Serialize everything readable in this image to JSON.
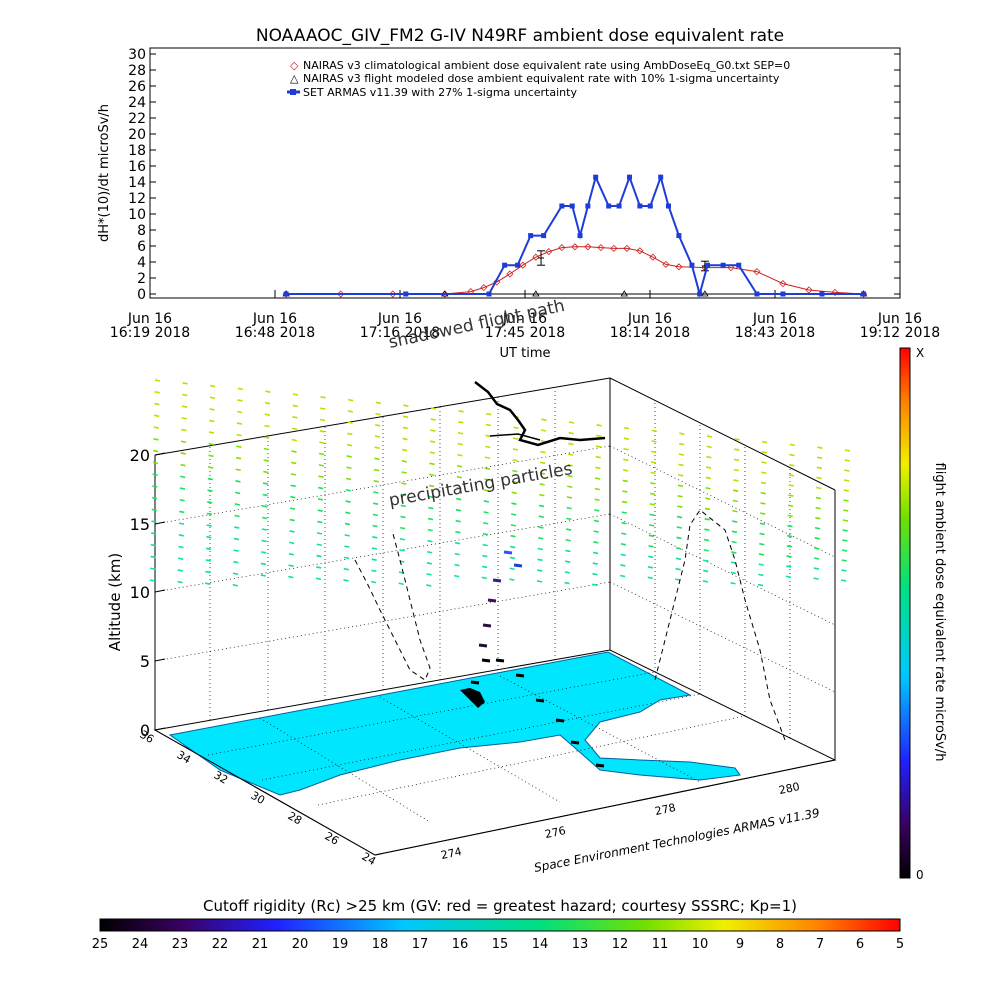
{
  "chart_data": [
    {
      "type": "line",
      "title": "NOAAAOC_GIV_FM2 G-IV    N49RF  ambient dose equivalent rate",
      "xlabel": "UT time",
      "ylabel": "dH*(10)/dt microSv/h",
      "ylim": [
        0,
        30
      ],
      "y_ticks": [
        "0",
        "2",
        "4",
        "6",
        "8",
        "10",
        "12",
        "14",
        "16",
        "18",
        "20",
        "22",
        "24",
        "26",
        "28",
        "30"
      ],
      "x_ticks": [
        {
          "date": "Jun 16",
          "time": "16:19 2018"
        },
        {
          "date": "Jun 16",
          "time": "16:48 2018"
        },
        {
          "date": "Jun 16",
          "time": "17:16 2018"
        },
        {
          "date": "Jun 16",
          "time": "17:45 2018"
        },
        {
          "date": "Jun 16",
          "time": "18:14 2018"
        },
        {
          "date": "Jun 16",
          "time": "18:43 2018"
        },
        {
          "date": "Jun 16",
          "time": "19:12 2018"
        }
      ],
      "legend_position": "top-right",
      "series": [
        {
          "name": "NAIRAS v3 climatological ambient dose equivalent rate using AmbDoseEq_G0.txt SEP=0",
          "color": "#cc2222",
          "marker": "diamond",
          "x": [
            16.84,
            17.05,
            17.25,
            17.45,
            17.55,
            17.6,
            17.65,
            17.7,
            17.75,
            17.8,
            17.85,
            17.9,
            17.95,
            18.0,
            18.05,
            18.1,
            18.15,
            18.2,
            18.25,
            18.3,
            18.35,
            18.45,
            18.55,
            18.65,
            18.75,
            18.85,
            18.95,
            19.06
          ],
          "values": [
            0,
            0,
            0,
            0,
            0.3,
            0.8,
            1.5,
            2.5,
            3.6,
            4.6,
            5.3,
            5.8,
            5.9,
            5.9,
            5.8,
            5.7,
            5.7,
            5.4,
            4.6,
            3.7,
            3.4,
            3.3,
            3.3,
            2.8,
            1.3,
            0.5,
            0.2,
            0
          ]
        },
        {
          "name": "NAIRAS v3 flight modeled dose ambient equivalent rate with 10% 1-sigma uncertainty",
          "color": "#000000",
          "marker": "triangle",
          "x": [
            16.84,
            17.45,
            17.8,
            18.14,
            18.45,
            19.06
          ],
          "values": [
            0,
            0,
            0,
            0,
            0,
            0
          ],
          "error_bars": [
            {
              "x": 17.82,
              "y": 4.5,
              "err": 0.9
            },
            {
              "x": 18.45,
              "y": 3.5,
              "err": 0.6
            }
          ]
        },
        {
          "name": "SET ARMAS v11.39 with 27% 1-sigma uncertainty",
          "color": "#1e3cd8",
          "marker": "square",
          "x": [
            16.84,
            17.3,
            17.62,
            17.68,
            17.73,
            17.78,
            17.83,
            17.9,
            17.94,
            17.97,
            18.0,
            18.03,
            18.08,
            18.12,
            18.16,
            18.2,
            18.24,
            18.28,
            18.31,
            18.35,
            18.4,
            18.43,
            18.46,
            18.52,
            18.58,
            18.65,
            18.75,
            18.9,
            19.06
          ],
          "values": [
            0,
            0,
            0,
            3.6,
            3.6,
            7.3,
            7.3,
            11,
            11,
            7.3,
            11,
            14.6,
            11,
            11,
            14.6,
            11,
            11,
            14.6,
            11,
            7.3,
            3.6,
            0,
            3.6,
            3.6,
            3.6,
            0,
            0,
            0,
            0
          ]
        }
      ]
    },
    {
      "type": "scatter",
      "title": "",
      "zlabel": "Altitude (km)",
      "z_ticks": [
        "0",
        "5",
        "10",
        "15",
        "20"
      ],
      "lat_ticks": [
        "36",
        "34",
        "32",
        "30",
        "28",
        "26",
        "24"
      ],
      "lon_ticks": [
        "274",
        "276",
        "278",
        "280"
      ],
      "annotations": {
        "shadowed": "shadowed flight path",
        "precipitating": "precipitating particles",
        "credit": "Space Environment Technologies ARMAS v11.39"
      },
      "side_colorbar": {
        "label": "flight ambient dose equivalent rate microSv/h",
        "top": "X",
        "bottom": "0"
      },
      "bottom_colorbar": {
        "label": "Cutoff rigidity (Rc) >25 km (GV: red = greatest hazard; courtesy SSSRC; Kp=1)",
        "ticks": [
          "25",
          "24",
          "23",
          "22",
          "21",
          "20",
          "19",
          "18",
          "17",
          "16",
          "15",
          "14",
          "13",
          "12",
          "11",
          "10",
          "9",
          "8",
          "7",
          "6",
          "5"
        ]
      }
    }
  ]
}
